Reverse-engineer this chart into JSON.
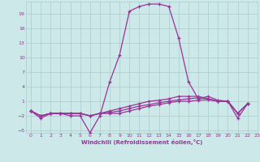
{
  "xlabel": "Windchill (Refroidissement éolien,°C)",
  "xlim": [
    -0.5,
    23
  ],
  "ylim": [
    -5.5,
    21.5
  ],
  "yticks": [
    -5,
    -2,
    1,
    4,
    7,
    10,
    13,
    16,
    19
  ],
  "xticks": [
    0,
    1,
    2,
    3,
    4,
    5,
    6,
    7,
    8,
    9,
    10,
    11,
    12,
    13,
    14,
    15,
    16,
    17,
    18,
    19,
    20,
    21,
    22,
    23
  ],
  "bg_color": "#cce8e8",
  "grid_color": "#aacccc",
  "line_color": "#993399",
  "main_curve": [
    -1,
    -2.5,
    -1.5,
    -1.5,
    -2.0,
    -2.0,
    -5.5,
    -2.0,
    5.0,
    10.5,
    19.5,
    20.5,
    21.0,
    21.0,
    20.5,
    14.0,
    5.0,
    1.5,
    2.0,
    1.2,
    1.0,
    -2.5,
    0.5
  ],
  "flat1": [
    -1.0,
    -2.0,
    -1.5,
    -1.5,
    -1.5,
    -1.5,
    -2.0,
    -1.5,
    -1.5,
    -1.5,
    -1.0,
    -0.5,
    0.0,
    0.3,
    0.7,
    1.0,
    1.0,
    1.2,
    1.3,
    1.0,
    1.0,
    -1.5,
    0.5
  ],
  "flat2": [
    -1.0,
    -2.0,
    -1.5,
    -1.5,
    -1.5,
    -1.5,
    -2.0,
    -1.5,
    -1.3,
    -1.0,
    -0.5,
    0.0,
    0.3,
    0.7,
    1.0,
    1.3,
    1.5,
    1.7,
    1.5,
    1.0,
    1.0,
    -1.5,
    0.5
  ],
  "flat3": [
    -1.0,
    -2.0,
    -1.5,
    -1.5,
    -1.5,
    -1.5,
    -2.0,
    -1.5,
    -1.0,
    -0.5,
    0.0,
    0.5,
    1.0,
    1.2,
    1.5,
    2.0,
    2.0,
    2.0,
    1.5,
    1.0,
    1.0,
    -1.5,
    0.5
  ],
  "x_hours": [
    0,
    1,
    2,
    3,
    4,
    5,
    6,
    7,
    8,
    9,
    10,
    11,
    12,
    13,
    14,
    15,
    16,
    17,
    18,
    19,
    20,
    21,
    22
  ]
}
